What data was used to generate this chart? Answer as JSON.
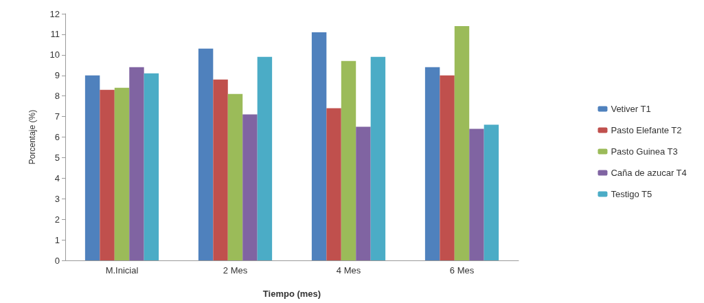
{
  "chart_data": {
    "type": "bar",
    "xlabel": "Tiempo (mes)",
    "ylabel": "Porcentaje (%)",
    "categories": [
      "M.Inicial",
      "2 Mes",
      "4 Mes",
      "6 Mes"
    ],
    "series": [
      {
        "name": "Vetiver T1",
        "color": "#4f81bd",
        "values": [
          9.0,
          10.3,
          11.1,
          9.4
        ]
      },
      {
        "name": "Pasto Elefante T2",
        "color": "#c0504d",
        "values": [
          8.3,
          8.8,
          7.4,
          9.0
        ]
      },
      {
        "name": "Pasto Guinea T3",
        "color": "#9bbb59",
        "values": [
          8.4,
          8.1,
          9.7,
          11.4
        ]
      },
      {
        "name": "Caña de azucar T4",
        "color": "#8064a2",
        "values": [
          9.4,
          7.1,
          6.5,
          6.4
        ]
      },
      {
        "name": "Testigo T5",
        "color": "#4bacc6",
        "values": [
          9.1,
          9.9,
          9.9,
          6.6
        ]
      }
    ],
    "ylim": [
      0,
      12
    ],
    "yticks": [
      0,
      1,
      2,
      3,
      4,
      5,
      6,
      7,
      8,
      9,
      10,
      11,
      12
    ],
    "grid": false,
    "legend": "right"
  }
}
